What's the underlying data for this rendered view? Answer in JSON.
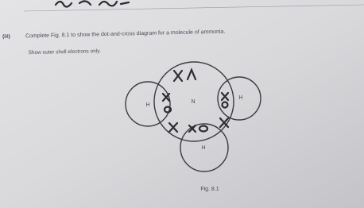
{
  "question": {
    "number": "(iii)",
    "text": "Complete Fig. 8.1 to show the dot-and-cross diagram for a molecule of ammonia.",
    "note": "Show outer shell electrons only."
  },
  "diagram": {
    "atoms": [
      "H",
      "N",
      "H",
      "H"
    ],
    "caption": "Fig. 8.1"
  }
}
